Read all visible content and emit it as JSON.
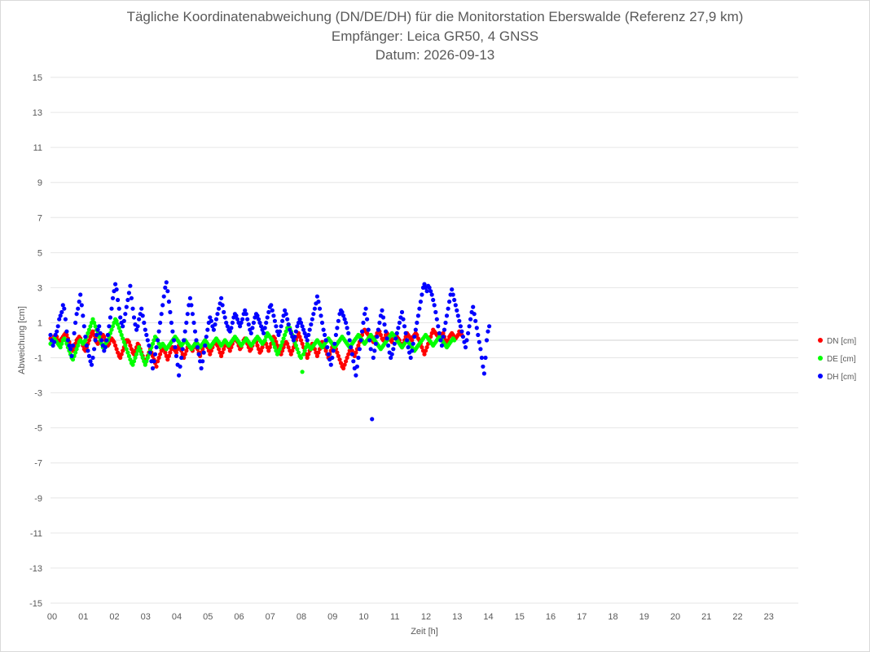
{
  "chart_data": {
    "type": "scatter",
    "title_lines": [
      "Tägliche Koordinatenabweichung (DN/DE/DH) für die Monitorstation Eberswalde (Referenz 27,9 km)",
      "Empfänger: Leica GR50, 4 GNSS",
      "Datum: 2026-09-13"
    ],
    "xlabel": "Zeit [h]",
    "ylabel": "Abweichung [cm]",
    "xlim": [
      0,
      24
    ],
    "ylim": [
      -15,
      15
    ],
    "x_ticks": [
      0,
      1,
      2,
      3,
      4,
      5,
      6,
      7,
      8,
      9,
      10,
      11,
      12,
      13,
      14,
      15,
      16,
      17,
      18,
      19,
      20,
      21,
      22,
      23
    ],
    "x_tick_labels": [
      "00",
      "01",
      "02",
      "03",
      "04",
      "05",
      "06",
      "07",
      "08",
      "09",
      "10",
      "11",
      "12",
      "13",
      "14",
      "15",
      "16",
      "17",
      "18",
      "19",
      "20",
      "21",
      "22",
      "23"
    ],
    "y_ticks": [
      15,
      13,
      11,
      9,
      7,
      5,
      3,
      1,
      -1,
      -3,
      -5,
      -7,
      -9,
      -11,
      -13,
      -15
    ],
    "y_tick_labels": [
      "15",
      "13",
      "11",
      "9",
      "7",
      "5",
      "3",
      "1",
      "-1",
      "-3",
      "-5",
      "-7",
      "-9",
      "-11",
      "-13",
      "-15"
    ],
    "grid": "horizontal",
    "legend_position": "right",
    "sample_interval_h": 0.04,
    "series": [
      {
        "name": "DN [cm]",
        "color": "#ff0000",
        "values": [
          0.1,
          0.0,
          -0.1,
          0.2,
          0.3,
          0.2,
          0.0,
          -0.2,
          0.0,
          0.1,
          0.2,
          0.3,
          0.4,
          0.3,
          0.1,
          -0.1,
          -0.3,
          -0.5,
          -0.6,
          -0.4,
          -0.2,
          0.0,
          0.1,
          0.2,
          0.1,
          -0.1,
          -0.3,
          -0.5,
          -0.6,
          -0.4,
          -0.2,
          0.0,
          0.2,
          0.4,
          0.5,
          0.3,
          0.1,
          -0.1,
          -0.2,
          -0.1,
          0.1,
          0.2,
          0.3,
          0.2,
          0.0,
          -0.2,
          -0.3,
          -0.2,
          0.0,
          0.1,
          0.0,
          -0.1,
          -0.3,
          -0.5,
          -0.7,
          -0.9,
          -1.0,
          -0.8,
          -0.6,
          -0.4,
          -0.2,
          0.0,
          0.0,
          -0.1,
          -0.3,
          -0.5,
          -0.7,
          -0.8,
          -0.6,
          -0.4,
          -0.2,
          -0.3,
          -0.5,
          -0.7,
          -0.9,
          -1.1,
          -1.3,
          -1.1,
          -0.9,
          -0.7,
          -0.5,
          -0.7,
          -0.9,
          -1.1,
          -1.3,
          -1.5,
          -1.2,
          -1.0,
          -0.8,
          -0.6,
          -0.4,
          -0.5,
          -0.7,
          -0.9,
          -1.1,
          -0.9,
          -0.7,
          -0.5,
          -0.4,
          -0.5,
          -0.6,
          -0.7,
          -0.5,
          -0.3,
          -0.4,
          -0.6,
          -0.8,
          -1.0,
          -0.8,
          -0.6,
          -0.4,
          -0.3,
          -0.4,
          -0.5,
          -0.6,
          -0.4,
          -0.2,
          -0.3,
          -0.5,
          -0.7,
          -0.9,
          -0.7,
          -0.5,
          -0.3,
          -0.2,
          -0.3,
          -0.4,
          -0.6,
          -0.8,
          -0.6,
          -0.4,
          -0.2,
          -0.1,
          -0.2,
          -0.3,
          -0.5,
          -0.7,
          -0.9,
          -0.7,
          -0.5,
          -0.3,
          -0.2,
          -0.3,
          -0.4,
          -0.6,
          -0.4,
          -0.2,
          0.0,
          0.1,
          0.0,
          -0.1,
          -0.3,
          -0.5,
          -0.4,
          -0.2,
          0.0,
          0.1,
          0.0,
          -0.2,
          -0.4,
          -0.6,
          -0.5,
          -0.3,
          -0.1,
          0.0,
          -0.1,
          -0.3,
          -0.5,
          -0.7,
          -0.6,
          -0.4,
          -0.2,
          -0.1,
          -0.2,
          -0.4,
          -0.6,
          -0.4,
          -0.2,
          0.0,
          0.2,
          0.1,
          -0.1,
          -0.3,
          -0.5,
          -0.7,
          -0.8,
          -0.6,
          -0.4,
          -0.2,
          -0.1,
          -0.2,
          -0.4,
          -0.6,
          -0.8,
          -0.6,
          -0.4,
          -0.2,
          0.0,
          0.2,
          0.4,
          0.2,
          0.0,
          -0.2,
          -0.4,
          -0.6,
          -0.8,
          -1.0,
          -0.8,
          -0.6,
          -0.4,
          -0.2,
          -0.3,
          -0.5,
          -0.7,
          -0.9,
          -0.7,
          -0.5,
          -0.3,
          -0.1,
          -0.2,
          -0.4,
          -0.6,
          -0.8,
          -1.0,
          -0.8,
          -0.6,
          -0.4,
          -0.2,
          -0.3,
          -0.5,
          -0.7,
          -0.9,
          -1.1,
          -1.3,
          -1.5,
          -1.6,
          -1.4,
          -1.2,
          -1.0,
          -0.8,
          -0.6,
          -0.4,
          -0.6,
          -0.8,
          -0.9,
          -0.7,
          -0.5,
          -0.3,
          -0.1,
          0.1,
          0.3,
          0.5,
          0.6,
          0.5,
          0.4,
          0.3,
          0.2,
          0.1,
          0.0,
          -0.1,
          0.0,
          0.2,
          0.4,
          0.6,
          0.5,
          0.3,
          0.1,
          0.0,
          0.1,
          0.3,
          0.4,
          0.3,
          0.1,
          0.0,
          -0.1,
          0.1,
          0.2,
          0.3,
          0.2,
          0.1,
          0.0,
          -0.2,
          -0.4,
          -0.2,
          0.0,
          0.2,
          0.4,
          0.3,
          0.2,
          0.1,
          0.0,
          0.2,
          0.3,
          0.4,
          0.3,
          0.1,
          0.0,
          -0.2,
          -0.4,
          -0.6,
          -0.8,
          -0.6,
          -0.4,
          -0.2,
          0.0,
          0.2,
          0.4,
          0.6,
          0.5,
          0.4,
          0.3,
          0.2,
          0.1,
          0.2,
          0.3,
          0.4,
          0.2,
          0.0,
          -0.2,
          0.0,
          0.2,
          0.3,
          0.4,
          0.3,
          0.2,
          0.1,
          0.2,
          0.3,
          0.5,
          0.4,
          0.3
        ]
      },
      {
        "name": "DE [cm]",
        "color": "#00ff00",
        "values": [
          -0.2,
          -0.1,
          0.0,
          0.1,
          0.0,
          -0.1,
          -0.2,
          -0.3,
          -0.4,
          -0.2,
          0.0,
          0.1,
          0.0,
          -0.2,
          -0.4,
          -0.6,
          -0.8,
          -1.0,
          -1.1,
          -0.9,
          -0.7,
          -0.5,
          -0.3,
          -0.1,
          0.0,
          -0.1,
          -0.2,
          -0.1,
          0.0,
          0.2,
          0.4,
          0.6,
          0.8,
          1.0,
          1.2,
          1.0,
          0.8,
          0.6,
          0.4,
          0.2,
          0.0,
          -0.2,
          -0.4,
          -0.3,
          -0.2,
          -0.1,
          0.0,
          0.2,
          0.4,
          0.6,
          0.8,
          1.0,
          1.2,
          1.1,
          0.9,
          0.7,
          0.5,
          0.3,
          0.1,
          -0.1,
          -0.3,
          -0.5,
          -0.7,
          -0.9,
          -1.1,
          -1.3,
          -1.4,
          -1.2,
          -1.0,
          -0.8,
          -0.6,
          -0.4,
          -0.6,
          -0.8,
          -1.0,
          -1.2,
          -1.4,
          -1.2,
          -1.0,
          -0.8,
          -0.6,
          -0.4,
          -0.2,
          0.0,
          0.2,
          0.1,
          0.0,
          -0.2,
          -0.4,
          -0.3,
          -0.2,
          -0.3,
          -0.4,
          -0.5,
          -0.4,
          -0.3,
          -0.2,
          -0.1,
          0.0,
          0.1,
          0.2,
          0.1,
          0.0,
          -0.1,
          -0.2,
          -0.3,
          -0.2,
          -0.1,
          0.0,
          -0.1,
          -0.2,
          -0.3,
          -0.4,
          -0.5,
          -0.4,
          -0.3,
          -0.2,
          -0.1,
          -0.2,
          -0.3,
          -0.4,
          -0.3,
          -0.2,
          -0.1,
          0.0,
          -0.1,
          -0.2,
          -0.3,
          -0.4,
          -0.3,
          -0.2,
          -0.1,
          0.0,
          0.1,
          0.0,
          -0.1,
          -0.2,
          -0.3,
          -0.2,
          -0.1,
          0.0,
          -0.1,
          -0.2,
          -0.3,
          -0.2,
          -0.1,
          0.0,
          0.1,
          0.2,
          0.1,
          0.0,
          -0.1,
          -0.2,
          -0.3,
          -0.2,
          -0.1,
          0.0,
          0.1,
          0.0,
          -0.1,
          -0.2,
          -0.3,
          -0.2,
          -0.1,
          0.0,
          0.1,
          0.2,
          0.1,
          0.0,
          -0.1,
          -0.2,
          -0.1,
          0.0,
          0.2,
          0.4,
          0.3,
          0.2,
          0.1,
          0.0,
          -0.2,
          -0.4,
          -0.6,
          -0.8,
          -0.7,
          -0.5,
          -0.3,
          -0.1,
          0.1,
          0.3,
          0.5,
          0.7,
          0.9,
          0.7,
          0.5,
          0.3,
          0.1,
          -0.1,
          -0.3,
          -0.5,
          -0.7,
          -0.9,
          -1.0,
          -1.8,
          -0.8,
          -0.6,
          -0.4,
          -0.2,
          -0.3,
          -0.4,
          -0.5,
          -0.4,
          -0.3,
          -0.2,
          -0.1,
          0.0,
          -0.1,
          -0.2,
          -0.3,
          -0.4,
          -0.3,
          -0.2,
          -0.1,
          0.0,
          0.1,
          0.0,
          -0.1,
          -0.2,
          -0.3,
          -0.4,
          -0.3,
          -0.2,
          -0.1,
          0.0,
          0.1,
          0.2,
          0.1,
          0.0,
          -0.1,
          -0.2,
          -0.3,
          -0.4,
          -0.3,
          -0.2,
          -0.1,
          0.0,
          0.1,
          0.2,
          0.3,
          0.2,
          0.1,
          0.0,
          -0.1,
          -0.2,
          -0.1,
          0.0,
          0.1,
          0.2,
          0.3,
          0.2,
          0.1,
          0.0,
          -0.1,
          -0.2,
          -0.3,
          -0.4,
          -0.5,
          -0.4,
          -0.3,
          -0.2,
          -0.1,
          0.0,
          0.1,
          0.2,
          0.3,
          0.4,
          0.3,
          0.2,
          0.1,
          0.0,
          -0.1,
          -0.2,
          -0.3,
          -0.4,
          -0.3,
          -0.2,
          -0.1,
          0.0,
          -0.1,
          -0.2,
          -0.3,
          -0.4,
          -0.5,
          -0.6,
          -0.5,
          -0.4,
          -0.3,
          -0.2,
          -0.1,
          0.0,
          0.1,
          0.2,
          0.3,
          0.2,
          0.1,
          0.0,
          -0.1,
          -0.2,
          -0.3,
          -0.2,
          -0.1,
          0.0,
          0.1,
          0.2,
          0.1,
          0.0,
          -0.1,
          -0.2,
          -0.3,
          -0.4,
          -0.3,
          -0.2,
          -0.1,
          0.0,
          0.1,
          0.0
        ]
      },
      {
        "name": "DH [cm]",
        "color": "#0000ff",
        "values": [
          0.3,
          0.0,
          -0.3,
          -0.1,
          0.3,
          0.5,
          0.8,
          1.2,
          1.4,
          1.6,
          2.0,
          1.8,
          1.2,
          0.5,
          0.0,
          -0.3,
          -0.5,
          -0.9,
          -0.3,
          0.4,
          1.0,
          1.5,
          1.8,
          2.2,
          2.6,
          2.0,
          1.4,
          0.8,
          0.2,
          -0.3,
          -0.6,
          -0.9,
          -1.2,
          -1.4,
          -1.0,
          -0.5,
          0.0,
          0.3,
          0.6,
          0.8,
          0.4,
          0.0,
          -0.3,
          -0.6,
          -0.4,
          0.0,
          0.3,
          0.8,
          1.3,
          1.8,
          2.4,
          2.8,
          3.2,
          2.9,
          2.3,
          1.8,
          1.3,
          1.0,
          0.8,
          1.1,
          1.5,
          1.9,
          2.3,
          2.7,
          3.1,
          2.4,
          1.8,
          1.3,
          0.9,
          0.6,
          0.8,
          1.2,
          1.5,
          1.8,
          1.4,
          1.0,
          0.6,
          0.3,
          0.0,
          -0.3,
          -0.7,
          -1.2,
          -1.6,
          -1.2,
          -0.8,
          -0.4,
          0.0,
          0.5,
          1.0,
          1.5,
          2.0,
          2.5,
          3.0,
          3.3,
          2.8,
          2.2,
          1.6,
          1.0,
          0.5,
          0.0,
          -0.4,
          -0.9,
          -1.4,
          -2.0,
          -1.5,
          -1.0,
          -0.5,
          0.0,
          0.5,
          1.0,
          1.5,
          2.0,
          2.4,
          2.0,
          1.5,
          1.0,
          0.5,
          0.0,
          -0.4,
          -0.8,
          -1.2,
          -1.6,
          -1.2,
          -0.7,
          -0.3,
          0.2,
          0.6,
          1.0,
          1.3,
          1.1,
          0.8,
          0.6,
          0.9,
          1.2,
          1.5,
          1.8,
          2.1,
          2.4,
          2.0,
          1.6,
          1.3,
          1.0,
          0.8,
          0.6,
          0.5,
          0.7,
          1.0,
          1.3,
          1.5,
          1.4,
          1.2,
          1.0,
          0.8,
          1.0,
          1.2,
          1.5,
          1.7,
          1.5,
          1.2,
          0.9,
          0.6,
          0.4,
          0.7,
          1.0,
          1.3,
          1.5,
          1.4,
          1.2,
          1.0,
          0.8,
          0.6,
          0.4,
          0.7,
          1.0,
          1.3,
          1.6,
          1.9,
          2.0,
          1.7,
          1.4,
          1.1,
          0.8,
          0.5,
          0.3,
          0.5,
          0.8,
          1.1,
          1.4,
          1.7,
          1.5,
          1.2,
          0.9,
          0.6,
          0.4,
          0.2,
          0.0,
          0.2,
          0.5,
          0.8,
          1.0,
          1.2,
          1.0,
          0.8,
          0.6,
          0.4,
          0.2,
          0.0,
          0.3,
          0.6,
          0.9,
          1.2,
          1.5,
          1.8,
          2.1,
          2.5,
          2.2,
          1.8,
          1.4,
          1.0,
          0.6,
          0.3,
          0.0,
          -0.4,
          -0.8,
          -1.1,
          -1.4,
          -1.0,
          -0.6,
          -0.2,
          0.3,
          0.7,
          1.1,
          1.5,
          1.7,
          1.6,
          1.4,
          1.2,
          1.0,
          0.7,
          0.4,
          0.0,
          -0.4,
          -0.8,
          -1.2,
          -1.6,
          -2.0,
          -1.5,
          -1.0,
          -0.5,
          0.0,
          0.5,
          1.0,
          1.5,
          1.8,
          1.2,
          0.6,
          0.0,
          -0.5,
          -4.5,
          -1.0,
          -0.6,
          -0.2,
          0.2,
          0.6,
          1.0,
          1.4,
          1.7,
          1.3,
          0.9,
          0.5,
          0.1,
          -0.3,
          -0.7,
          -1.0,
          -0.8,
          -0.5,
          -0.2,
          0.1,
          0.4,
          0.7,
          1.0,
          1.3,
          1.6,
          1.2,
          0.8,
          0.4,
          0.0,
          -0.4,
          -0.7,
          -1.0,
          -0.6,
          -0.2,
          0.2,
          0.6,
          1.0,
          1.4,
          1.8,
          2.2,
          2.6,
          3.0,
          3.2,
          3.0,
          2.8,
          3.1,
          3.0,
          2.8,
          2.6,
          2.3,
          2.0,
          1.6,
          1.2,
          0.8,
          0.4,
          0.0,
          -0.3,
          0.2,
          0.6,
          1.0,
          1.4,
          1.8,
          2.2,
          2.6,
          2.9,
          2.6,
          2.3,
          2.0,
          1.7,
          1.4,
          1.1,
          0.8,
          0.5,
          0.2,
          -0.1,
          -0.4,
          0.0,
          0.4,
          0.8,
          1.2,
          1.6,
          1.9,
          1.5,
          1.1,
          0.7,
          0.3,
          -0.1,
          -0.5,
          -1.0,
          -1.5,
          -1.9,
          -1.0,
          0.0,
          0.5,
          0.8
        ]
      }
    ]
  }
}
